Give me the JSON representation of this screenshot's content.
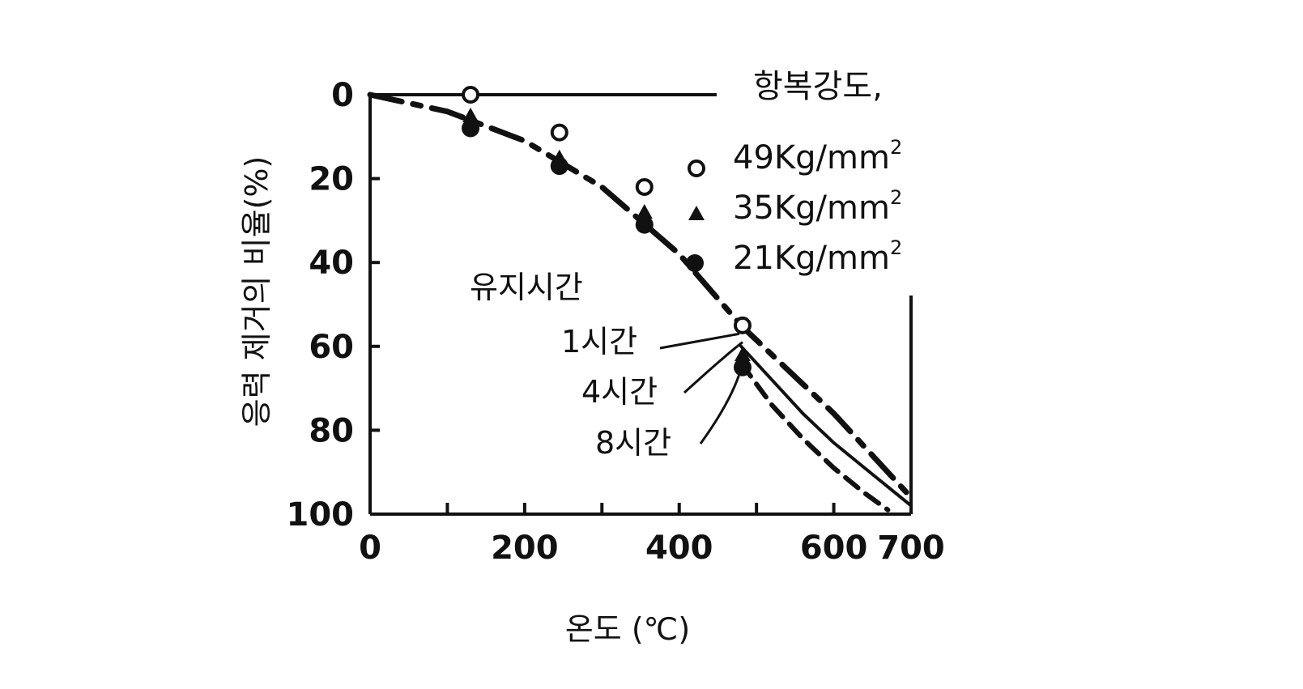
{
  "chart_data": {
    "type": "line",
    "xlabel": "온도 (℃)",
    "ylabel": "응력 제거의 비율(%)",
    "xlim": [
      0,
      700
    ],
    "ylim": [
      0,
      100
    ],
    "y_inverted": true,
    "x_ticks": [
      "0",
      "200",
      "400",
      "600",
      "700"
    ],
    "y_ticks": [
      "0",
      "20",
      "40",
      "60",
      "80",
      "100"
    ],
    "legend": {
      "title": "항복강도,",
      "entries": [
        {
          "marker": "open-circle",
          "label": "49Kg/mm",
          "sup": "2"
        },
        {
          "marker": "triangle",
          "label": "35Kg/mm",
          "sup": "2"
        },
        {
          "marker": "filled-circle",
          "label": "21Kg/mm",
          "sup": "2"
        }
      ]
    },
    "annotations": {
      "header": "유지시간",
      "items": [
        "1시간",
        "4시간",
        "8시간"
      ]
    },
    "series": [
      {
        "name": "1시간",
        "style": "dash-dot-thick",
        "x": [
          0,
          100,
          200,
          300,
          400,
          480,
          520,
          560,
          600,
          640,
          680,
          700
        ],
        "y": [
          0,
          4,
          11,
          22,
          38,
          55,
          62,
          69,
          76,
          84,
          92,
          96
        ]
      },
      {
        "name": "4시간",
        "style": "solid-thin",
        "x": [
          480,
          520,
          560,
          600,
          640,
          680,
          700
        ],
        "y": [
          60,
          68,
          76,
          83,
          89,
          95,
          98
        ]
      },
      {
        "name": "8시간",
        "style": "dashed",
        "x": [
          480,
          520,
          560,
          600,
          640,
          670
        ],
        "y": [
          64,
          74,
          82,
          89,
          95,
          99
        ]
      }
    ],
    "points": [
      {
        "marker": "open-circle",
        "x": [
          130,
          245,
          355,
          482
        ],
        "y": [
          0,
          9,
          22,
          55
        ]
      },
      {
        "marker": "triangle",
        "x": [
          130,
          245,
          355,
          482
        ],
        "y": [
          5,
          15,
          28,
          62
        ]
      },
      {
        "marker": "filled-circle",
        "x": [
          130,
          245,
          355,
          482
        ],
        "y": [
          8,
          17,
          31,
          65
        ]
      }
    ]
  }
}
